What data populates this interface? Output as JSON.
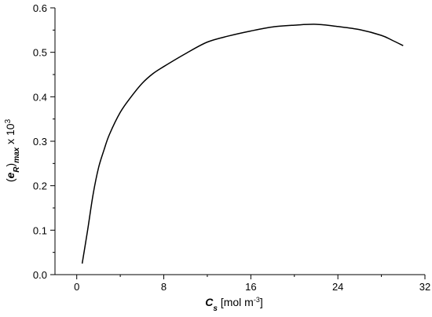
{
  "chart_data": {
    "type": "line",
    "xlabel": {
      "symbol": "C",
      "subscript": "s",
      "unit_prefix": " [mol m",
      "unit_exp": "-3",
      "unit_suffix": "]"
    },
    "ylabel": {
      "open": "(",
      "symbol": "e",
      "sub_symbol": "R",
      "close": ")",
      "sub_max": "max",
      "mult": " x 10",
      "exp": "3"
    },
    "xlim": [
      -2,
      32
    ],
    "ylim": [
      0.0,
      0.6
    ],
    "xticks": [
      0,
      8,
      16,
      24,
      32
    ],
    "xtick_labels": [
      "0",
      "8",
      "16",
      "24",
      "32"
    ],
    "xminor_step": 4,
    "yticks": [
      0.0,
      0.1,
      0.2,
      0.3,
      0.4,
      0.5,
      0.6
    ],
    "ytick_labels": [
      "0.0",
      "0.1",
      "0.2",
      "0.3",
      "0.4",
      "0.5",
      "0.6"
    ],
    "yminor_step": 0.05,
    "grid": false,
    "series": [
      {
        "line_color": "#000000",
        "x": [
          0.5,
          1.0,
          1.5,
          2.0,
          2.5,
          3.0,
          4.0,
          5.0,
          6.0,
          7.0,
          8.0,
          10.0,
          12.0,
          14.0,
          16.0,
          18.0,
          20.0,
          22.0,
          24.0,
          26.0,
          28.0,
          29.0,
          30.0
        ],
        "y": [
          0.025,
          0.1,
          0.18,
          0.24,
          0.28,
          0.315,
          0.365,
          0.4,
          0.43,
          0.452,
          0.468,
          0.497,
          0.523,
          0.537,
          0.548,
          0.557,
          0.561,
          0.563,
          0.558,
          0.551,
          0.538,
          0.527,
          0.515
        ]
      }
    ]
  }
}
